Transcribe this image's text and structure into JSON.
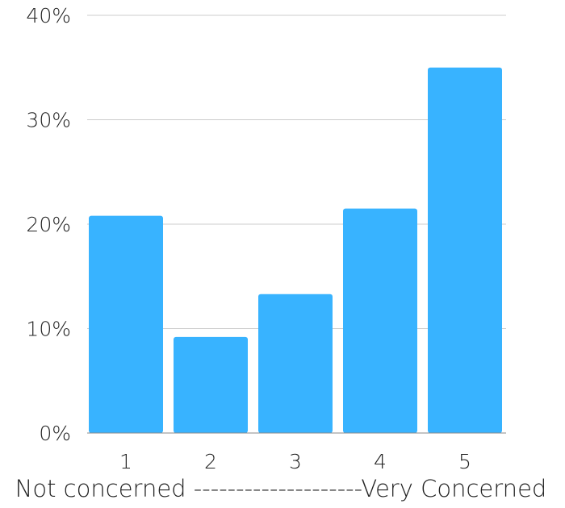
{
  "chart_data": {
    "type": "bar",
    "categories": [
      "1",
      "2",
      "3",
      "4",
      "5"
    ],
    "values": [
      20.8,
      9.2,
      13.3,
      21.5,
      35.0
    ],
    "ylim": [
      0,
      40
    ],
    "yticks": [
      "0%",
      "10%",
      "20%",
      "30%",
      "40%"
    ],
    "xlabel": "Not concerned --------------------Very Concerned",
    "grid": true,
    "bar_color": "#38b3ff"
  }
}
